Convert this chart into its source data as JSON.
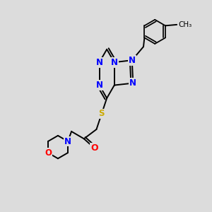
{
  "background_color": "#dcdcdc",
  "atom_colors": {
    "N": "#0000ff",
    "O": "#ff0000",
    "S": "#ccaa00",
    "C": "#000000"
  },
  "bond_color": "#000000",
  "font_size_atoms": 8.5,
  "fig_size": [
    3.0,
    3.0
  ],
  "dpi": 100
}
